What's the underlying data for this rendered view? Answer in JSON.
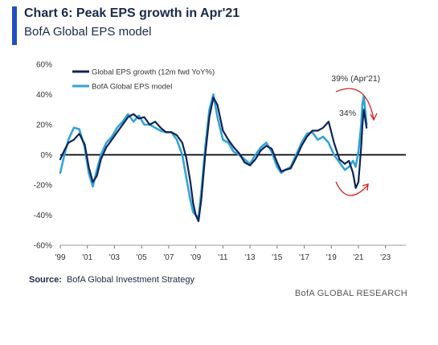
{
  "header": {
    "title": "Chart 6: Peak EPS growth in Apr'21",
    "subtitle": "BofA Global EPS model"
  },
  "footer": {
    "source_label": "Source:",
    "source_text": "BofA Global Investment Strategy",
    "brand": "BofA GLOBAL RESEARCH"
  },
  "colors": {
    "accent": "#1f4fbf",
    "series_actual": "#0f2357",
    "series_model": "#33a3d6",
    "zero_line": "#000000",
    "annotation_arrows": "#d42020"
  },
  "chart_data": {
    "type": "line",
    "title": "Chart 6: Peak EPS growth in Apr'21",
    "subtitle": "BofA Global EPS model",
    "xlim": [
      1999,
      2024.5
    ],
    "ylim": [
      -60,
      60
    ],
    "x_ticks": [
      1999,
      2001,
      2003,
      2005,
      2007,
      2009,
      2011,
      2013,
      2015,
      2017,
      2019,
      2021,
      2023
    ],
    "x_tick_labels": [
      "'99",
      "'01",
      "'03",
      "'05",
      "'07",
      "'09",
      "'11",
      "'13",
      "'15",
      "'17",
      "'19",
      "'21",
      "'23"
    ],
    "y_ticks": [
      -60,
      -40,
      -20,
      0,
      20,
      40,
      60
    ],
    "y_tick_labels": [
      "-60%",
      "-40%",
      "-20%",
      "0%",
      "20%",
      "40%",
      "60%"
    ],
    "grid": false,
    "legend_position": "top-left",
    "series": [
      {
        "name": "Global EPS growth (12m fwd YoY%)",
        "x": [
          1999.0,
          1999.3,
          1999.6,
          2000.0,
          2000.4,
          2000.8,
          2001.1,
          2001.4,
          2001.7,
          2002.0,
          2002.4,
          2002.8,
          2003.2,
          2003.6,
          2004.0,
          2004.4,
          2004.8,
          2005.2,
          2005.6,
          2006.0,
          2006.4,
          2006.8,
          2007.2,
          2007.6,
          2008.0,
          2008.3,
          2008.6,
          2008.8,
          2009.0,
          2009.2,
          2009.4,
          2009.7,
          2010.0,
          2010.3,
          2010.6,
          2011.0,
          2011.4,
          2011.8,
          2012.2,
          2012.6,
          2013.0,
          2013.4,
          2013.8,
          2014.2,
          2014.6,
          2015.0,
          2015.3,
          2015.6,
          2016.0,
          2016.4,
          2016.8,
          2017.2,
          2017.6,
          2018.0,
          2018.4,
          2018.8,
          2019.2,
          2019.6,
          2020.0,
          2020.3,
          2020.6,
          2020.8,
          2021.0,
          2021.2,
          2021.3,
          2021.4,
          2021.5,
          2021.6
        ],
        "values": [
          -3,
          3,
          8,
          10,
          14,
          7,
          -8,
          -18,
          -14,
          -3,
          5,
          10,
          15,
          20,
          25,
          27,
          24,
          25,
          20,
          22,
          18,
          15,
          15,
          13,
          8,
          -2,
          -18,
          -32,
          -40,
          -44,
          -30,
          0,
          25,
          38,
          33,
          16,
          10,
          5,
          1,
          -5,
          -7,
          -3,
          3,
          6,
          4,
          -5,
          -11,
          -10,
          -9,
          -2,
          6,
          12,
          16,
          16,
          18,
          22,
          8,
          -3,
          -6,
          -4,
          -12,
          -22,
          -18,
          5,
          20,
          30,
          24,
          18
        ]
      },
      {
        "name": "BofA Global EPS model",
        "x": [
          1999.0,
          1999.3,
          1999.6,
          2000.0,
          2000.4,
          2000.8,
          2001.1,
          2001.4,
          2001.7,
          2002.0,
          2002.4,
          2002.8,
          2003.2,
          2003.6,
          2004.0,
          2004.4,
          2004.8,
          2005.2,
          2005.6,
          2006.0,
          2006.4,
          2006.8,
          2007.2,
          2007.6,
          2008.0,
          2008.3,
          2008.6,
          2008.8,
          2009.0,
          2009.2,
          2009.4,
          2009.7,
          2010.0,
          2010.3,
          2010.6,
          2011.0,
          2011.4,
          2011.8,
          2012.2,
          2012.6,
          2013.0,
          2013.4,
          2013.8,
          2014.2,
          2014.6,
          2015.0,
          2015.3,
          2015.6,
          2016.0,
          2016.4,
          2016.8,
          2017.2,
          2017.6,
          2018.0,
          2018.4,
          2018.8,
          2019.2,
          2019.6,
          2020.0,
          2020.3,
          2020.6,
          2020.8,
          2021.0,
          2021.2,
          2021.3,
          2021.4,
          2021.5,
          2021.6
        ],
        "values": [
          -12,
          0,
          10,
          18,
          17,
          5,
          -12,
          -21,
          -10,
          0,
          8,
          12,
          18,
          22,
          27,
          22,
          26,
          20,
          20,
          18,
          16,
          15,
          15,
          10,
          0,
          -15,
          -30,
          -38,
          -40,
          -42,
          -25,
          5,
          30,
          40,
          25,
          10,
          8,
          2,
          0,
          -3,
          -6,
          0,
          5,
          8,
          2,
          -8,
          -12,
          -10,
          -8,
          0,
          8,
          14,
          15,
          10,
          12,
          8,
          0,
          -5,
          -10,
          -8,
          -4,
          -8,
          2,
          20,
          34,
          39,
          30,
          20
        ]
      }
    ],
    "annotations": [
      {
        "text": "39% (Apr'21)",
        "x": 2021.4,
        "y": 39
      },
      {
        "text": "34%",
        "x": 2021.3,
        "y": 34
      }
    ]
  }
}
